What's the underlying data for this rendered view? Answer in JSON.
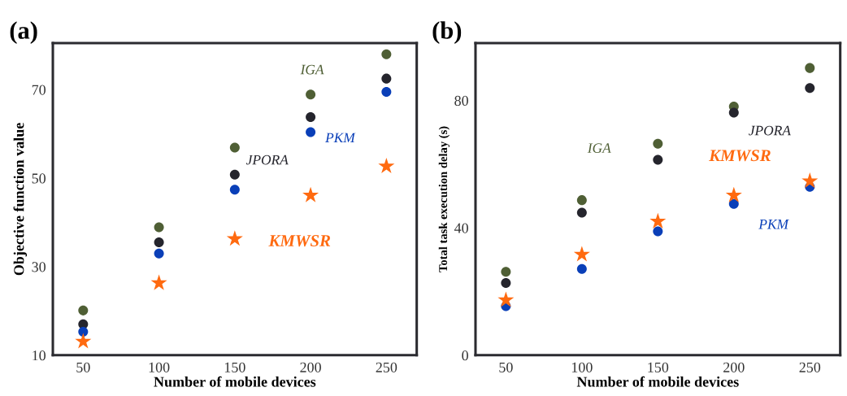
{
  "chart_data": [
    {
      "type": "scatter",
      "title": "(a)",
      "xlabel": "Number of mobile devices",
      "ylabel": "Objective function value",
      "x": [
        50,
        100,
        150,
        200,
        250
      ],
      "xlim": [
        30,
        270
      ],
      "xticks": [
        50,
        100,
        150,
        200,
        250
      ],
      "ylim": [
        10,
        80.5
      ],
      "yticks": [
        10,
        30,
        50,
        70
      ],
      "grid": false,
      "legend": false,
      "series": [
        {
          "name": "IGA",
          "color": "#4f5f35",
          "marker": "circle",
          "values": [
            20.1,
            38.9,
            56.9,
            68.9,
            78.0
          ]
        },
        {
          "name": "JPORA",
          "color": "#25252d",
          "marker": "circle",
          "values": [
            17.0,
            35.5,
            50.8,
            63.8,
            72.5
          ]
        },
        {
          "name": "PKM",
          "color": "#0a3fb8",
          "marker": "circle",
          "values": [
            15.3,
            33.0,
            47.4,
            60.4,
            69.5
          ]
        },
        {
          "name": "KMWSR",
          "color": "#ff6a10",
          "marker": "star",
          "values": [
            13.1,
            26.3,
            36.3,
            46.1,
            52.7
          ]
        }
      ]
    },
    {
      "type": "scatter",
      "title": "(b)",
      "xlabel": "Number of mobile devices",
      "ylabel": "Total task execution delay (s)",
      "x": [
        50,
        100,
        150,
        200,
        250
      ],
      "xlim": [
        30,
        270
      ],
      "xticks": [
        50,
        100,
        150,
        200,
        250
      ],
      "ylim": [
        0,
        98
      ],
      "yticks": [
        0,
        40,
        80
      ],
      "grid": false,
      "legend": false,
      "series": [
        {
          "name": "IGA",
          "color": "#4f5f35",
          "marker": "circle",
          "values": [
            26.2,
            48.7,
            66.4,
            78.1,
            90.2
          ]
        },
        {
          "name": "JPORA",
          "color": "#25252d",
          "marker": "circle",
          "values": [
            22.7,
            44.8,
            61.4,
            76.2,
            83.9
          ]
        },
        {
          "name": "PKM",
          "color": "#0a3fb8",
          "marker": "circle",
          "values": [
            15.4,
            27.1,
            38.9,
            47.5,
            52.9
          ]
        },
        {
          "name": "KMWSR",
          "color": "#ff6a10",
          "marker": "star",
          "values": [
            17.3,
            31.6,
            42.0,
            50.2,
            54.7
          ]
        }
      ]
    }
  ]
}
